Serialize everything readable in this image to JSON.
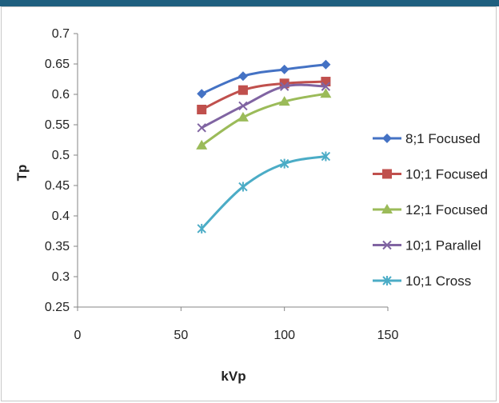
{
  "chart_data": {
    "type": "line",
    "xlabel": "kVp",
    "ylabel": "Tp",
    "xlim": [
      0,
      150
    ],
    "ylim": [
      0.25,
      0.7
    ],
    "x_ticks": [
      0,
      50,
      100,
      150
    ],
    "y_ticks": [
      0.25,
      0.3,
      0.35,
      0.4,
      0.45,
      0.5,
      0.55,
      0.6,
      0.65,
      0.7
    ],
    "y_tick_labels": [
      "0.25",
      "0.3",
      "0.35",
      "0.4",
      "0.45",
      "0.5",
      "0.55",
      "0.6",
      "0.65",
      "0.7"
    ],
    "grid": false,
    "legend_position": "right",
    "x": [
      60,
      80,
      100,
      120
    ],
    "series": [
      {
        "name": "8;1 Focused",
        "values": [
          0.601,
          0.63,
          0.641,
          0.649
        ],
        "color": "#4472c4",
        "marker": "diamond"
      },
      {
        "name": "10;1 Focused",
        "values": [
          0.575,
          0.607,
          0.618,
          0.621
        ],
        "color": "#c0504d",
        "marker": "square"
      },
      {
        "name": "12;1 Focused",
        "values": [
          0.516,
          0.562,
          0.588,
          0.601
        ],
        "color": "#9bbb59",
        "marker": "triangle"
      },
      {
        "name": "10;1 Parallel",
        "values": [
          0.545,
          0.581,
          0.613,
          0.613
        ],
        "color": "#8064a2",
        "marker": "x"
      },
      {
        "name": "10;1 Cross",
        "values": [
          0.379,
          0.448,
          0.486,
          0.498
        ],
        "color": "#4bacc6",
        "marker": "star"
      }
    ]
  }
}
